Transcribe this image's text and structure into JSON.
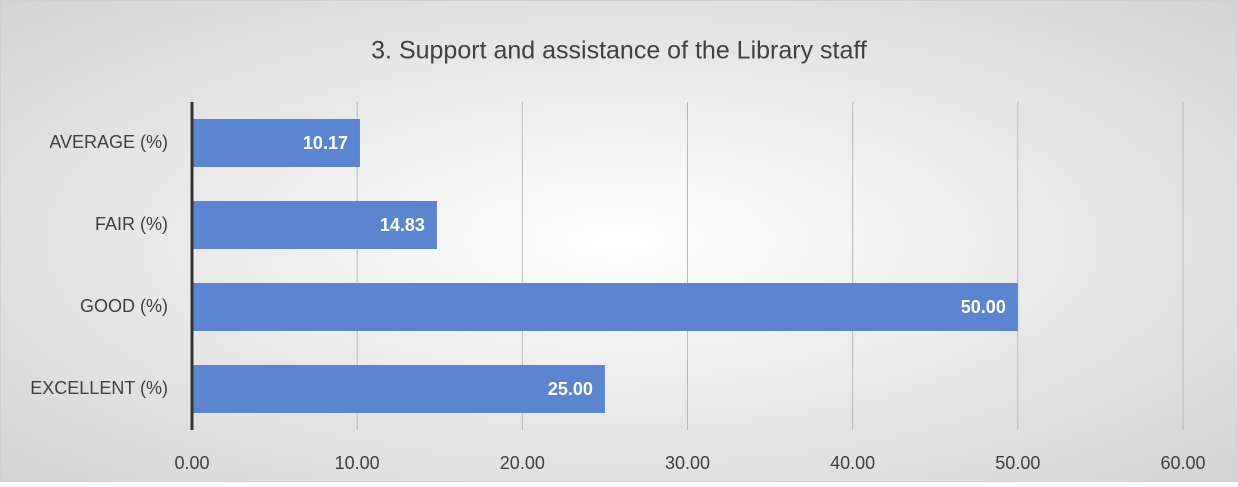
{
  "chart_data": {
    "type": "bar",
    "orientation": "horizontal",
    "title": "3. Support and assistance of the Library staff",
    "categories": [
      "AVERAGE (%)",
      "FAIR (%)",
      "GOOD (%)",
      "EXCELLENT (%)"
    ],
    "values": [
      10.17,
      14.83,
      50,
      25
    ],
    "value_labels": [
      "10.17",
      "14.83",
      "50.00",
      "25.00"
    ],
    "color": "#5b86cf",
    "xlim": [
      0,
      60
    ],
    "xticks": [
      {
        "value": 0,
        "label": "0.00"
      },
      {
        "value": 10,
        "label": "10.00"
      },
      {
        "value": 20,
        "label": "20.00"
      },
      {
        "value": 30,
        "label": "30.00"
      },
      {
        "value": 40,
        "label": "40.00"
      },
      {
        "value": 50,
        "label": "50.00"
      },
      {
        "value": 60,
        "label": "60.00"
      }
    ],
    "grid": true
  }
}
